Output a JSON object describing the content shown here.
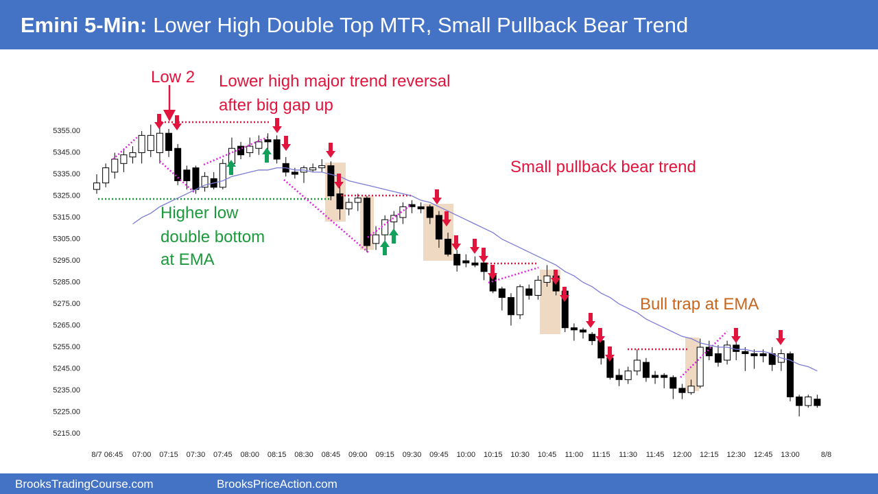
{
  "chart_data": {
    "type": "candlestick",
    "title_lead": "Emini 5-Min:",
    "title": "Lower High Double Top MTR, Small Pullback Bear Trend",
    "categories": [
      null,
      null,
      "8/7 06:45",
      null,
      null,
      "07:00",
      null,
      null,
      "07:15",
      null,
      null,
      "07:30",
      null,
      null,
      "07:45",
      null,
      null,
      "08:00",
      null,
      null,
      "08:15",
      null,
      null,
      "08:30",
      null,
      null,
      "08:45",
      null,
      null,
      "09:00",
      null,
      null,
      "09:15",
      null,
      null,
      "09:30",
      null,
      null,
      "09:45",
      null,
      null,
      "10:00",
      null,
      null,
      "10:15",
      null,
      null,
      "10:30",
      null,
      null,
      "10:45",
      null,
      null,
      "11:00",
      null,
      null,
      "11:15",
      null,
      null,
      "11:30",
      null,
      null,
      "11:45",
      null,
      null,
      "12:00",
      null,
      null,
      "12:15",
      null,
      null,
      "12:30",
      null,
      null,
      "12:45",
      null,
      null,
      "13:00",
      null,
      null,
      null,
      "8/8"
    ],
    "open": [
      5328,
      5331,
      5336,
      5340,
      5343,
      5345,
      5346,
      5345,
      5354,
      5347,
      5337,
      5338,
      5329,
      5333,
      5329,
      5340,
      5348,
      5345,
      5347,
      5351,
      5351,
      5340,
      5336,
      5336,
      5337,
      5338,
      5339,
      5326,
      5319,
      5322,
      5324,
      5303,
      5307,
      5313,
      5315,
      5321,
      5320,
      5320,
      5316,
      5305,
      5298,
      5295,
      5294,
      5294,
      5289,
      5282,
      5278,
      5270,
      5282,
      5279,
      5285,
      5288,
      5281,
      5264,
      5263,
      5261,
      5258,
      5250,
      5242,
      5240,
      5244,
      5248,
      5242,
      5242,
      5241,
      5236,
      5234,
      5237,
      5255,
      5252,
      5249,
      5256,
      5253,
      5252,
      5252,
      5252,
      5248,
      5252,
      5232,
      5228,
      5231,
      null
    ],
    "high": [
      5335,
      5340,
      5345,
      5347,
      5348,
      5355,
      5358,
      5357,
      5356,
      5349,
      5339,
      5339,
      5336,
      5336,
      5342,
      5352,
      5350,
      5352,
      5353,
      5354,
      5353,
      5343,
      5338,
      5339,
      5340,
      5342,
      5341,
      5330,
      5324,
      5326,
      5325,
      5311,
      5316,
      5318,
      5322,
      5323,
      5322,
      5321,
      5318,
      5308,
      5300,
      5298,
      5297,
      5296,
      5293,
      5283,
      5280,
      5284,
      5284,
      5288,
      5293,
      5290,
      5283,
      5266,
      5264,
      5262,
      5260,
      5252,
      5245,
      5246,
      5254,
      5250,
      5244,
      5243,
      5242,
      5238,
      5240,
      5259,
      5258,
      5256,
      5258,
      5260,
      5255,
      5254,
      5254,
      5255,
      5254,
      5253,
      5233,
      5233,
      5233,
      null
    ],
    "low": [
      5326,
      5329,
      5333,
      5336,
      5340,
      5340,
      5343,
      5340,
      5343,
      5330,
      5328,
      5326,
      5327,
      5328,
      5328,
      5338,
      5342,
      5343,
      5344,
      5343,
      5340,
      5334,
      5333,
      5331,
      5336,
      5336,
      5323,
      5314,
      5316,
      5318,
      5299,
      5300,
      5304,
      5308,
      5312,
      5317,
      5317,
      5312,
      5301,
      5297,
      5290,
      5292,
      5292,
      5286,
      5280,
      5272,
      5265,
      5268,
      5277,
      5277,
      5283,
      5279,
      5262,
      5258,
      5259,
      5256,
      5247,
      5240,
      5237,
      5238,
      5242,
      5239,
      5238,
      5236,
      5231,
      5231,
      5233,
      5236,
      5249,
      5246,
      5247,
      5249,
      5244,
      5245,
      5248,
      5244,
      5244,
      5230,
      5223,
      5227,
      5227,
      null
    ],
    "close": [
      5331,
      5338,
      5342,
      5344,
      5345,
      5353,
      5353,
      5354,
      5346,
      5332,
      5332,
      5328,
      5334,
      5329,
      5340,
      5347,
      5344,
      5348,
      5350,
      5350,
      5342,
      5336,
      5335,
      5338,
      5338,
      5339,
      5325,
      5319,
      5322,
      5324,
      5302,
      5307,
      5314,
      5316,
      5320,
      5320,
      5319,
      5315,
      5305,
      5298,
      5293,
      5294,
      5293,
      5290,
      5281,
      5278,
      5270,
      5283,
      5279,
      5286,
      5288,
      5281,
      5264,
      5263,
      5262,
      5258,
      5250,
      5241,
      5240,
      5244,
      5249,
      5241,
      5241,
      5241,
      5236,
      5234,
      5237,
      5255,
      5251,
      5248,
      5256,
      5253,
      5252,
      5251,
      5251,
      5247,
      5252,
      5232,
      5228,
      5232,
      5228,
      null
    ],
    "up_color": "#ffffff",
    "down_color": "#000000",
    "lines": [
      {
        "color": "#7b7bd6",
        "values": [
          null,
          null,
          null,
          null,
          5312,
          5315,
          5317,
          5320,
          5322,
          5324,
          5326,
          5328,
          5330,
          5331,
          5332,
          5334,
          5335,
          5336,
          5337,
          5337,
          5338,
          5338,
          5337,
          5337,
          5336,
          5336,
          5335,
          5334,
          5332,
          5331,
          5330,
          5329,
          5328,
          5327,
          5326,
          5325,
          5323,
          5322,
          5320,
          5318,
          5316,
          5314,
          5312,
          5310,
          5308,
          5305,
          5303,
          5301,
          5299,
          5297,
          5295,
          5293,
          5290,
          5288,
          5285,
          5283,
          5280,
          5278,
          5275,
          5273,
          5271,
          5268,
          5266,
          5264,
          5262,
          5260,
          5259,
          5257,
          5256,
          5255,
          5255,
          5254,
          5254,
          5253,
          5253,
          5252,
          5250,
          5249,
          5247,
          5246,
          5244,
          null
        ]
      }
    ],
    "ylim": [
      5210,
      5360
    ],
    "yticks": [
      {
        "value": 5215,
        "label": "5215.00"
      },
      {
        "value": 5225,
        "label": "5225.00"
      },
      {
        "value": 5235,
        "label": "5235.00"
      },
      {
        "value": 5245,
        "label": "5245.00"
      },
      {
        "value": 5255,
        "label": "5255.00"
      },
      {
        "value": 5265,
        "label": "5265.00"
      },
      {
        "value": 5275,
        "label": "5275.00"
      },
      {
        "value": 5285,
        "label": "5285.00"
      },
      {
        "value": 5295,
        "label": "5295.00"
      },
      {
        "value": 5305,
        "label": "5305.00"
      },
      {
        "value": 5315,
        "label": "5315.00"
      },
      {
        "value": 5325,
        "label": "5325.00"
      },
      {
        "value": 5335,
        "label": "5335.00"
      },
      {
        "value": 5345,
        "label": "5345.00"
      },
      {
        "value": 5355,
        "label": "5355.00"
      }
    ],
    "grid": false,
    "annotations": {
      "low2": "Low 2",
      "reversal": [
        "Lower high major trend reversal",
        "after big gap up"
      ],
      "bear": "Small pullback bear trend",
      "higher_low": [
        "Higher low",
        "double bottom",
        "at EMA"
      ],
      "bull_trap": "Bull trap at EMA"
    }
  },
  "footer": [
    "BrooksTradingCourse.com",
    "BrooksPriceAction.com"
  ]
}
